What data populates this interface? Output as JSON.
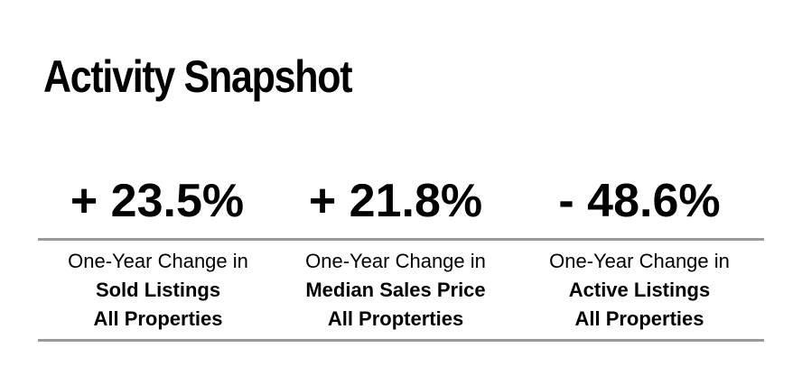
{
  "title": "Activity Snapshot",
  "stats": [
    {
      "value": "+ 23.5%",
      "caption": "One-Year Change in",
      "metric": "Sold Listings",
      "scope": "All Properties"
    },
    {
      "value": "+ 21.8%",
      "caption": "One-Year Change in",
      "metric": "Median Sales Price",
      "scope": "All Proptertie s"
    },
    {
      "value": "- 48.6%",
      "caption": "One-Year Change in",
      "metric": "Active Listings",
      "scope": "All Properties"
    }
  ],
  "colors": {
    "text": "#000000",
    "rule": "#9a9a9a",
    "background": "#ffffff"
  }
}
